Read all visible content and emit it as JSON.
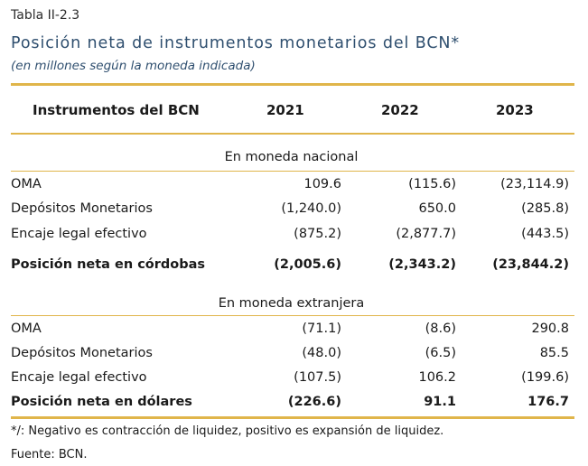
{
  "table": {
    "label": "Tabla II-2.3",
    "title": "Posición neta de instrumentos monetarios del BCN*",
    "subtitle": "(en millones según la moneda indicada)",
    "headers": [
      "Instrumentos del BCN",
      "2021",
      "2022",
      "2023"
    ],
    "sections": [
      {
        "heading": "En moneda nacional",
        "rows": [
          {
            "name": "OMA",
            "values": [
              "109.6",
              "(115.6)",
              "(23,114.9)"
            ]
          },
          {
            "name": "Depósitos Monetarios",
            "values": [
              "(1,240.0)",
              "650.0",
              "(285.8)"
            ]
          },
          {
            "name": "Encaje legal efectivo",
            "values": [
              "(875.2)",
              "(2,877.7)",
              "(443.5)"
            ]
          }
        ],
        "total": {
          "name": "Posición neta en córdobas",
          "values": [
            "(2,005.6)",
            "(2,343.2)",
            "(23,844.2)"
          ]
        }
      },
      {
        "heading": "En moneda extranjera",
        "rows": [
          {
            "name": "OMA",
            "values": [
              "(71.1)",
              "(8.6)",
              "290.8"
            ]
          },
          {
            "name": "Depósitos Monetarios",
            "values": [
              "(48.0)",
              "(6.5)",
              "85.5"
            ]
          },
          {
            "name": "Encaje legal efectivo",
            "values": [
              "(107.5)",
              "106.2",
              "(199.6)"
            ]
          }
        ],
        "total": {
          "name": "Posición neta en dólares",
          "values": [
            "(226.6)",
            "91.1",
            "176.7"
          ]
        }
      }
    ],
    "footnote": "*/: Negativo es contracción de liquidez, positivo es expansión de liquidez.",
    "source": "Fuente: BCN.",
    "colors": {
      "accent_rule": "#e0b54a",
      "title": "#2f4f6f"
    }
  }
}
